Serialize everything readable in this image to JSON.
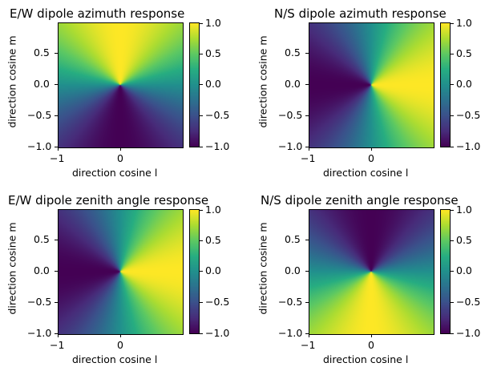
{
  "chart_data": [
    {
      "type": "heatmap",
      "title": "E/W dipole azimuth response",
      "xlabel": "direction cosine l",
      "ylabel": "direction cosine m",
      "xlim": [
        -1,
        1
      ],
      "ylim": [
        -1,
        1
      ],
      "xticks": [
        "−1",
        "0"
      ],
      "yticks": [
        "0.5",
        "0.0",
        "−0.5",
        "−1.0"
      ],
      "colorbar": {
        "ticks": [
          "1.0",
          "0.5",
          "0.0",
          "−0.5",
          "−1.0"
        ],
        "range": [
          -1,
          1
        ],
        "colormap": "viridis"
      },
      "field": "sin(atan2(m, l))"
    },
    {
      "type": "heatmap",
      "title": "N/S dipole azimuth response",
      "xlabel": "direction cosine l",
      "ylabel": "direction cosine m",
      "xlim": [
        -1,
        1
      ],
      "ylim": [
        -1,
        1
      ],
      "xticks": [
        "−1",
        "0"
      ],
      "yticks": [
        "0.5",
        "0.0",
        "−0.5",
        "−1.0"
      ],
      "colorbar": {
        "ticks": [
          "1.0",
          "0.5",
          "0.0",
          "−0.5",
          "−1.0"
        ],
        "range": [
          -1,
          1
        ],
        "colormap": "viridis"
      },
      "field": "cos(atan2(m, l))"
    },
    {
      "type": "heatmap",
      "title": "E/W dipole zenith angle response",
      "xlabel": "direction cosine l",
      "ylabel": "direction cosine m",
      "xlim": [
        -1,
        1
      ],
      "ylim": [
        -1,
        1
      ],
      "xticks": [
        "−1",
        "0"
      ],
      "yticks": [
        "0.5",
        "0.0",
        "−0.5",
        "−1.0"
      ],
      "colorbar": {
        "ticks": [
          "1.0",
          "0.5",
          "0.0",
          "−0.5",
          "−1.0"
        ],
        "range": [
          -1,
          1
        ],
        "colormap": "viridis"
      },
      "field": "cos(atan2(m, l))"
    },
    {
      "type": "heatmap",
      "title": "N/S dipole zenith angle response",
      "xlabel": "direction cosine l",
      "ylabel": "direction cosine m",
      "xlim": [
        -1,
        1
      ],
      "ylim": [
        -1,
        1
      ],
      "xticks": [
        "−1",
        "0"
      ],
      "yticks": [
        "0.5",
        "0.0",
        "−0.5",
        "−1.0"
      ],
      "colorbar": {
        "ticks": [
          "1.0",
          "0.5",
          "0.0",
          "−0.5",
          "−1.0"
        ],
        "range": [
          -1,
          1
        ],
        "colormap": "viridis"
      },
      "field": "-sin(atan2(m, l))"
    }
  ]
}
